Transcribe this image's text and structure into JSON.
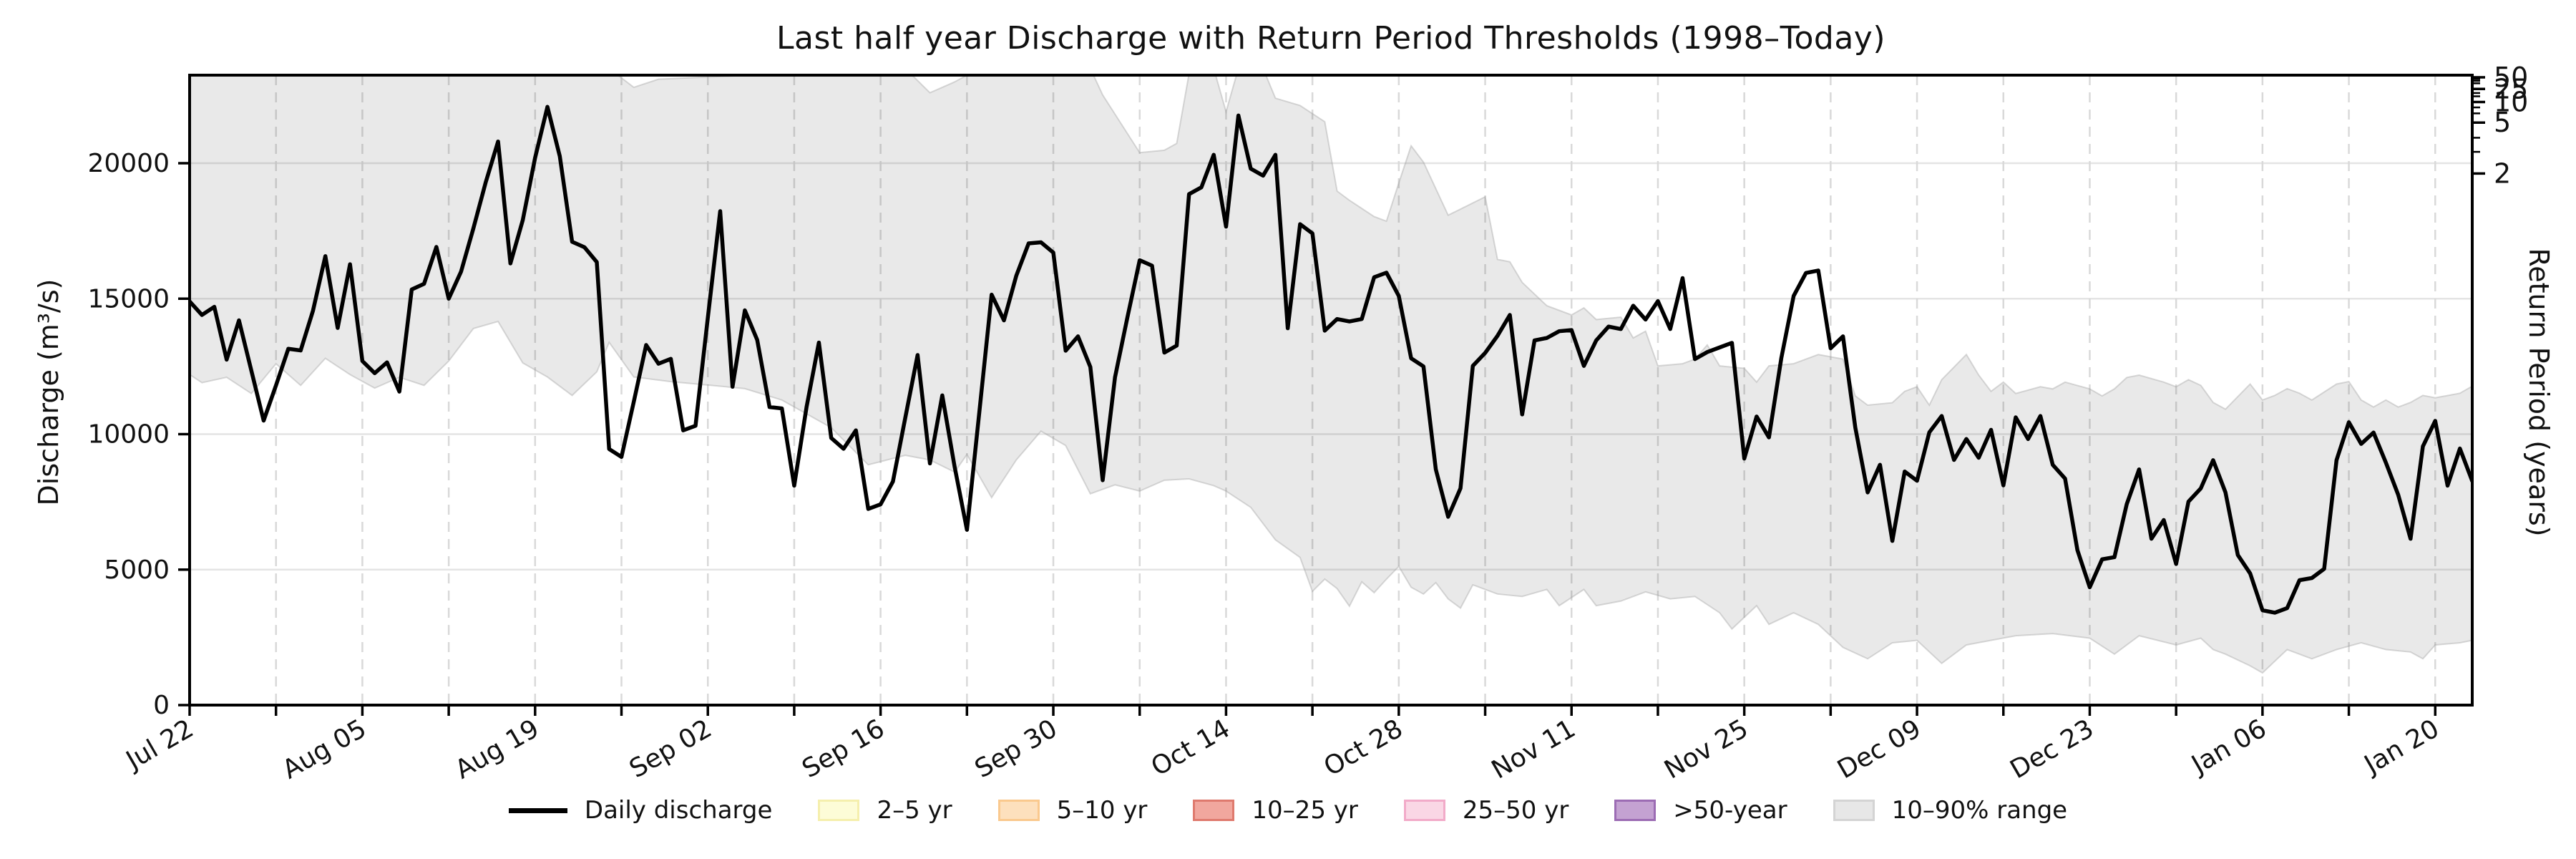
{
  "title": "Last half year Discharge with Return Period Thresholds (1998–Today)",
  "axes": {
    "left_label": "Discharge (m³/s)",
    "right_label": "Return Period (years)",
    "x_tick_labels": [
      "Jul 22",
      "Aug 05",
      "Aug 19",
      "Sep 02",
      "Sep 16",
      "Sep 30",
      "Oct 14",
      "Oct 28",
      "Nov 11",
      "Nov 25",
      "Dec 09",
      "Dec 23",
      "Jan 06",
      "Jan 20"
    ],
    "x_tick_days": [
      0,
      14,
      28,
      42,
      56,
      70,
      84,
      98,
      112,
      126,
      140,
      154,
      168,
      182
    ],
    "x_grid_step_days": 7,
    "y_tick_values": [
      0,
      5000,
      10000,
      15000,
      20000
    ],
    "y_tick_labels": [
      "0",
      "5000",
      "10000",
      "15000",
      "20000"
    ]
  },
  "legend": {
    "items": [
      {
        "type": "line",
        "label": "Daily discharge",
        "color": "#000000"
      },
      {
        "type": "patch",
        "label": "2–5 yr",
        "fill": "#fdfcd7",
        "edge": "#f5efad"
      },
      {
        "type": "patch",
        "label": "5–10 yr",
        "fill": "#fde0bd",
        "edge": "#fac98e"
      },
      {
        "type": "patch",
        "label": "10–25 yr",
        "fill": "#f1a79e",
        "edge": "#df7a6e"
      },
      {
        "type": "patch",
        "label": "25–50 yr",
        "fill": "#fad7e5",
        "edge": "#f2abc9"
      },
      {
        "type": "patch",
        "label": ">50-year",
        "fill": "#c4a2d2",
        "edge": "#9c6cb4"
      },
      {
        "type": "patch",
        "label": "10–90% range",
        "fill": "#e7e7e7",
        "edge": "#d4d4d4"
      }
    ]
  },
  "chart_data": {
    "type": "line",
    "x_unit": "days since Jul 22",
    "xlim": [
      0,
      185
    ],
    "ylim": [
      0,
      23250
    ],
    "grid": true,
    "legend_position": "bottom-center",
    "series": [
      {
        "name": "Daily discharge",
        "color": "#000000",
        "x_start_day": 0,
        "values": [
          14900,
          14400,
          14700,
          12750,
          14200,
          12350,
          10500,
          11800,
          13150,
          13090,
          14560,
          16570,
          13920,
          16270,
          12700,
          12250,
          12650,
          11570,
          15340,
          15550,
          16910,
          15000,
          16000,
          17600,
          19300,
          20800,
          16300,
          17900,
          20200,
          22080,
          20260,
          17100,
          16900,
          16350,
          9450,
          9160,
          11200,
          13290,
          12600,
          12780,
          10140,
          10310,
          14300,
          18230,
          11750,
          14570,
          13480,
          11000,
          10950,
          8100,
          11000,
          13380,
          9860,
          9460,
          10140,
          7240,
          7410,
          8250,
          10600,
          12920,
          8920,
          11430,
          8800,
          6470,
          10800,
          15150,
          14200,
          15850,
          17040,
          17080,
          16700,
          13080,
          13610,
          12480,
          8300,
          12100,
          14300,
          16420,
          16220,
          13010,
          13270,
          18860,
          19110,
          20310,
          17660,
          21760,
          19800,
          19540,
          20310,
          13910,
          17750,
          17410,
          13820,
          14250,
          14160,
          14250,
          15790,
          15960,
          15100,
          12800,
          12500,
          8700,
          6950,
          8000,
          12520,
          13000,
          13630,
          14400,
          10730,
          13460,
          13550,
          13800,
          13840,
          12520,
          13460,
          13970,
          13880,
          14740,
          14230,
          14910,
          13880,
          15760,
          12770,
          13030,
          13200,
          13370,
          9100,
          10650,
          9880,
          12800,
          15100,
          15950,
          16040,
          13170,
          13610,
          10240,
          7850,
          8870,
          6060,
          8620,
          8280,
          10070,
          10670,
          9050,
          9820,
          9130,
          10160,
          8110,
          10620,
          9820,
          10670,
          8870,
          8360,
          5720,
          4350,
          5380,
          5460,
          7420,
          8700,
          6140,
          6830,
          5210,
          7510,
          8000,
          9040,
          7850,
          5540,
          4860,
          3500,
          3410,
          3580,
          4610,
          4690,
          5030,
          9040,
          10440,
          9640,
          10060,
          8950,
          7760,
          6140,
          9550,
          10490,
          8100,
          9470,
          8270
        ]
      }
    ],
    "band_10_90": {
      "name": "10–90% range",
      "fill": "#e8e8e8",
      "upper_vertices": [
        [
          0,
          23500
        ],
        [
          34,
          23500
        ],
        [
          36,
          22800
        ],
        [
          38,
          23100
        ],
        [
          58,
          23500
        ],
        [
          60,
          22600
        ],
        [
          62,
          23000
        ],
        [
          64,
          23500
        ],
        [
          73,
          23500
        ],
        [
          74,
          22520
        ],
        [
          77,
          20390
        ],
        [
          79,
          20480
        ],
        [
          80,
          20730
        ],
        [
          81,
          23300
        ],
        [
          83,
          23500
        ],
        [
          84,
          21900
        ],
        [
          85,
          23500
        ],
        [
          87,
          23500
        ],
        [
          88,
          22400
        ],
        [
          90,
          22130
        ],
        [
          92,
          21530
        ],
        [
          93,
          18970
        ],
        [
          94,
          18630
        ],
        [
          96,
          18030
        ],
        [
          97,
          17860
        ],
        [
          98,
          19270
        ],
        [
          99,
          20640
        ],
        [
          100,
          20040
        ],
        [
          102,
          18080
        ],
        [
          105,
          18760
        ],
        [
          106,
          16450
        ],
        [
          107,
          16360
        ],
        [
          108,
          15600
        ],
        [
          110,
          14740
        ],
        [
          112,
          14400
        ],
        [
          113,
          14660
        ],
        [
          114,
          14230
        ],
        [
          116,
          14320
        ],
        [
          117,
          13550
        ],
        [
          118,
          13800
        ],
        [
          119,
          12520
        ],
        [
          121,
          12600
        ],
        [
          122,
          12770
        ],
        [
          123,
          13290
        ],
        [
          124,
          12520
        ],
        [
          126,
          12430
        ],
        [
          127,
          11920
        ],
        [
          128,
          12520
        ],
        [
          130,
          12600
        ],
        [
          132,
          12940
        ],
        [
          134,
          12770
        ],
        [
          135,
          11410
        ],
        [
          136,
          11070
        ],
        [
          138,
          11160
        ],
        [
          139,
          11580
        ],
        [
          140,
          11750
        ],
        [
          141,
          11070
        ],
        [
          142,
          12010
        ],
        [
          144,
          12940
        ],
        [
          145,
          12180
        ],
        [
          146,
          11580
        ],
        [
          147,
          11920
        ],
        [
          148,
          11500
        ],
        [
          150,
          11750
        ],
        [
          151,
          11670
        ],
        [
          152,
          11920
        ],
        [
          154,
          11670
        ],
        [
          155,
          11410
        ],
        [
          156,
          11670
        ],
        [
          157,
          12090
        ],
        [
          158,
          12180
        ],
        [
          160,
          11920
        ],
        [
          161,
          11750
        ],
        [
          162,
          12010
        ],
        [
          163,
          11800
        ],
        [
          164,
          11170
        ],
        [
          165,
          10920
        ],
        [
          167,
          11850
        ],
        [
          168,
          11260
        ],
        [
          169,
          11430
        ],
        [
          170,
          11680
        ],
        [
          171,
          11510
        ],
        [
          172,
          11260
        ],
        [
          174,
          11850
        ],
        [
          175,
          11940
        ],
        [
          176,
          11260
        ],
        [
          177,
          11000
        ],
        [
          178,
          11260
        ],
        [
          179,
          11000
        ],
        [
          180,
          11170
        ],
        [
          181,
          11430
        ],
        [
          182,
          11340
        ],
        [
          184,
          11510
        ],
        [
          185,
          11770
        ]
      ],
      "lower_vertices": [
        [
          0,
          12200
        ],
        [
          1,
          11900
        ],
        [
          3,
          12100
        ],
        [
          5,
          11500
        ],
        [
          7,
          12600
        ],
        [
          9,
          11800
        ],
        [
          11,
          12800
        ],
        [
          13,
          12200
        ],
        [
          15,
          11700
        ],
        [
          17,
          12100
        ],
        [
          19,
          11800
        ],
        [
          21,
          12700
        ],
        [
          23,
          13900
        ],
        [
          25,
          14160
        ],
        [
          27,
          12630
        ],
        [
          29,
          12110
        ],
        [
          31,
          11430
        ],
        [
          33,
          12300
        ],
        [
          34,
          13390
        ],
        [
          36,
          12110
        ],
        [
          39,
          11940
        ],
        [
          43,
          11770
        ],
        [
          45,
          11680
        ],
        [
          48,
          11260
        ],
        [
          50,
          10750
        ],
        [
          52,
          10240
        ],
        [
          55,
          8870
        ],
        [
          58,
          9220
        ],
        [
          60,
          9050
        ],
        [
          62,
          8600
        ],
        [
          63,
          9250
        ],
        [
          65,
          7660
        ],
        [
          67,
          9050
        ],
        [
          69,
          10110
        ],
        [
          71,
          9580
        ],
        [
          73,
          7800
        ],
        [
          75,
          8130
        ],
        [
          77,
          7900
        ],
        [
          79,
          8300
        ],
        [
          81,
          8350
        ],
        [
          83,
          8100
        ],
        [
          84,
          7900
        ],
        [
          86,
          7300
        ],
        [
          88,
          6100
        ],
        [
          90,
          5450
        ],
        [
          91,
          4200
        ],
        [
          92,
          4650
        ],
        [
          93,
          4300
        ],
        [
          94,
          3650
        ],
        [
          95,
          4550
        ],
        [
          96,
          4150
        ],
        [
          97,
          4650
        ],
        [
          98,
          5120
        ],
        [
          99,
          4350
        ],
        [
          100,
          4100
        ],
        [
          101,
          4520
        ],
        [
          102,
          3920
        ],
        [
          103,
          3580
        ],
        [
          104,
          4440
        ],
        [
          106,
          4100
        ],
        [
          108,
          4010
        ],
        [
          110,
          4270
        ],
        [
          111,
          3670
        ],
        [
          113,
          4270
        ],
        [
          114,
          3670
        ],
        [
          116,
          3840
        ],
        [
          118,
          4180
        ],
        [
          120,
          3920
        ],
        [
          122,
          4010
        ],
        [
          124,
          3410
        ],
        [
          125,
          2810
        ],
        [
          127,
          3670
        ],
        [
          128,
          2980
        ],
        [
          130,
          3410
        ],
        [
          132,
          2980
        ],
        [
          134,
          2130
        ],
        [
          136,
          1710
        ],
        [
          138,
          2300
        ],
        [
          140,
          2390
        ],
        [
          142,
          1540
        ],
        [
          144,
          2220
        ],
        [
          146,
          2390
        ],
        [
          148,
          2560
        ],
        [
          151,
          2640
        ],
        [
          154,
          2470
        ],
        [
          156,
          1880
        ],
        [
          158,
          2560
        ],
        [
          161,
          2220
        ],
        [
          163,
          2470
        ],
        [
          164,
          2050
        ],
        [
          165,
          1880
        ],
        [
          167,
          1450
        ],
        [
          168,
          1190
        ],
        [
          170,
          2050
        ],
        [
          172,
          1710
        ],
        [
          174,
          2050
        ],
        [
          176,
          2300
        ],
        [
          178,
          2050
        ],
        [
          180,
          1960
        ],
        [
          181,
          1710
        ],
        [
          182,
          2220
        ],
        [
          184,
          2300
        ],
        [
          185,
          2390
        ]
      ]
    },
    "return_period_axis": {
      "tick_labels": [
        "2",
        "5",
        "10",
        "25",
        "50"
      ],
      "tick_discharge_values": [
        19620,
        21500,
        22260,
        22740,
        23170
      ],
      "minor_tick_discharge_values": [
        20420,
        20940,
        21840,
        22060,
        22470,
        22590,
        22950,
        23040,
        23110
      ]
    }
  }
}
